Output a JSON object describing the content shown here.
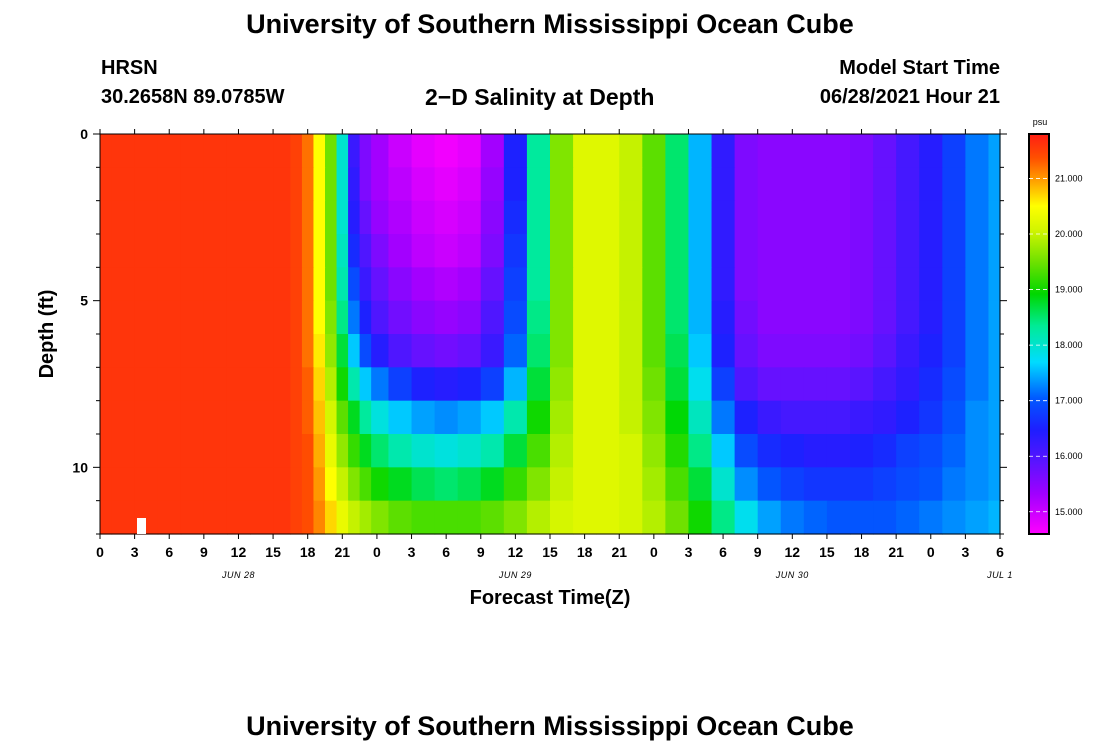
{
  "header": {
    "title_top": "University of Southern Mississippi Ocean Cube",
    "title_bottom": "University of Southern Mississippi Ocean Cube",
    "station": "HRSN",
    "coordinates": "30.2658N  89.0785W",
    "subtitle": "2−D Salinity at Depth",
    "model_start_label": "Model Start Time",
    "model_start_value": "06/28/2021 Hour 21"
  },
  "chart_data": {
    "type": "heatmap",
    "title": "2−D Salinity at Depth",
    "xlabel": "Forecast Time(Z)",
    "ylabel": "Depth (ft)",
    "x_tick_labels": [
      "0",
      "3",
      "6",
      "9",
      "12",
      "15",
      "18",
      "21",
      "0",
      "3",
      "6",
      "9",
      "12",
      "15",
      "18",
      "21",
      "0",
      "3",
      "6",
      "9",
      "12",
      "15",
      "18",
      "21",
      "0",
      "3",
      "6"
    ],
    "x_range_hours": [
      0,
      78
    ],
    "date_labels": [
      {
        "text": "JUN 28",
        "hour": 12
      },
      {
        "text": "JUN 29",
        "hour": 36
      },
      {
        "text": "JUN 30",
        "hour": 60
      },
      {
        "text": "JUL 1",
        "hour": 78
      }
    ],
    "y_ticks": [
      0,
      5,
      10
    ],
    "y_range_ft": [
      0,
      12
    ],
    "colorbar": {
      "unit": "psu",
      "ticks": [
        "15.000",
        "16.000",
        "17.000",
        "18.000",
        "19.000",
        "20.000",
        "21.000"
      ],
      "range": [
        14.6,
        21.8
      ]
    },
    "depth_levels_ft": [
      0.5,
      1.5,
      2.5,
      3.5,
      4.5,
      5.5,
      6.5,
      7.5,
      8.5,
      9.5,
      10.5,
      11.5
    ],
    "time_hours": [
      0,
      2,
      4,
      6,
      8,
      10,
      12,
      14,
      16,
      17,
      18,
      19,
      20,
      21,
      22,
      23,
      24,
      26,
      28,
      30,
      32,
      34,
      36,
      38,
      40,
      42,
      44,
      46,
      48,
      50,
      52,
      54,
      56,
      58,
      60,
      62,
      64,
      66,
      68,
      70,
      72,
      74,
      76,
      78
    ],
    "salinity_psu": [
      [
        21.6,
        21.6,
        21.6,
        21.6,
        21.6,
        21.6,
        21.6,
        21.6,
        21.6,
        21.5,
        21.2,
        20.5,
        19.5,
        18.0,
        16.2,
        15.6,
        15.3,
        15.0,
        14.8,
        14.7,
        14.8,
        15.3,
        16.5,
        18.3,
        19.6,
        20.2,
        20.2,
        20.0,
        19.4,
        18.5,
        17.5,
        16.3,
        15.6,
        15.5,
        15.5,
        15.5,
        15.5,
        15.6,
        15.8,
        16.1,
        16.4,
        16.8,
        17.2,
        17.4
      ],
      [
        21.6,
        21.6,
        21.6,
        21.6,
        21.6,
        21.6,
        21.6,
        21.6,
        21.6,
        21.5,
        21.2,
        20.5,
        19.5,
        18.0,
        16.3,
        15.6,
        15.3,
        15.1,
        14.9,
        14.8,
        14.9,
        15.4,
        16.5,
        18.3,
        19.6,
        20.2,
        20.2,
        20.0,
        19.4,
        18.5,
        17.5,
        16.3,
        15.6,
        15.5,
        15.5,
        15.5,
        15.5,
        15.6,
        15.8,
        16.1,
        16.4,
        16.8,
        17.2,
        17.4
      ],
      [
        21.6,
        21.6,
        21.6,
        21.6,
        21.6,
        21.6,
        21.6,
        21.6,
        21.6,
        21.5,
        21.2,
        20.5,
        19.5,
        18.0,
        16.4,
        15.8,
        15.4,
        15.2,
        15.0,
        14.9,
        15.0,
        15.5,
        16.6,
        18.3,
        19.6,
        20.2,
        20.2,
        20.0,
        19.4,
        18.5,
        17.5,
        16.3,
        15.6,
        15.5,
        15.5,
        15.5,
        15.5,
        15.6,
        15.8,
        16.1,
        16.4,
        16.8,
        17.2,
        17.4
      ],
      [
        21.6,
        21.6,
        21.6,
        21.6,
        21.6,
        21.6,
        21.6,
        21.6,
        21.6,
        21.5,
        21.2,
        20.5,
        19.5,
        18.1,
        16.6,
        16.0,
        15.6,
        15.3,
        15.1,
        15.0,
        15.1,
        15.6,
        16.7,
        18.3,
        19.6,
        20.2,
        20.2,
        20.0,
        19.4,
        18.5,
        17.5,
        16.3,
        15.6,
        15.5,
        15.5,
        15.5,
        15.5,
        15.6,
        15.8,
        16.1,
        16.4,
        16.8,
        17.2,
        17.4
      ],
      [
        21.6,
        21.6,
        21.6,
        21.6,
        21.6,
        21.6,
        21.6,
        21.6,
        21.6,
        21.5,
        21.2,
        20.5,
        19.5,
        18.2,
        16.9,
        16.2,
        15.8,
        15.5,
        15.3,
        15.2,
        15.3,
        15.8,
        16.8,
        18.3,
        19.6,
        20.2,
        20.2,
        20.0,
        19.4,
        18.5,
        17.5,
        16.3,
        15.6,
        15.5,
        15.5,
        15.5,
        15.5,
        15.6,
        15.8,
        16.1,
        16.4,
        16.8,
        17.2,
        17.4
      ],
      [
        21.6,
        21.6,
        21.6,
        21.6,
        21.6,
        21.6,
        21.6,
        21.6,
        21.6,
        21.5,
        21.2,
        20.5,
        19.6,
        18.4,
        17.2,
        16.5,
        16.0,
        15.7,
        15.5,
        15.4,
        15.5,
        16.0,
        16.9,
        18.4,
        19.6,
        20.2,
        20.2,
        20.0,
        19.4,
        18.5,
        17.5,
        16.4,
        15.7,
        15.5,
        15.5,
        15.5,
        15.5,
        15.6,
        15.8,
        16.1,
        16.4,
        16.8,
        17.2,
        17.4
      ],
      [
        21.6,
        21.6,
        21.6,
        21.6,
        21.6,
        21.6,
        21.6,
        21.6,
        21.6,
        21.5,
        21.2,
        20.6,
        19.7,
        18.7,
        17.6,
        16.9,
        16.4,
        16.0,
        15.8,
        15.7,
        15.8,
        16.2,
        17.1,
        18.5,
        19.6,
        20.2,
        20.2,
        20.0,
        19.4,
        18.6,
        17.6,
        16.5,
        15.8,
        15.6,
        15.6,
        15.6,
        15.6,
        15.7,
        15.9,
        16.2,
        16.5,
        16.8,
        17.2,
        17.4
      ],
      [
        21.6,
        21.6,
        21.6,
        21.6,
        21.6,
        21.6,
        21.6,
        21.6,
        21.6,
        21.5,
        21.3,
        20.7,
        19.9,
        19.0,
        18.2,
        17.6,
        17.2,
        16.8,
        16.5,
        16.4,
        16.5,
        16.8,
        17.5,
        18.7,
        19.7,
        20.2,
        20.2,
        20.0,
        19.5,
        18.7,
        17.8,
        16.8,
        16.0,
        15.8,
        15.8,
        15.8,
        15.8,
        15.9,
        16.1,
        16.3,
        16.6,
        16.9,
        17.2,
        17.4
      ],
      [
        21.6,
        21.6,
        21.6,
        21.6,
        21.6,
        21.6,
        21.6,
        21.6,
        21.6,
        21.5,
        21.3,
        20.8,
        20.1,
        19.4,
        18.8,
        18.3,
        17.9,
        17.6,
        17.4,
        17.3,
        17.4,
        17.6,
        18.2,
        19.0,
        19.8,
        20.2,
        20.2,
        20.0,
        19.6,
        18.9,
        18.1,
        17.2,
        16.5,
        16.2,
        16.1,
        16.1,
        16.1,
        16.2,
        16.3,
        16.5,
        16.7,
        17.0,
        17.3,
        17.4
      ],
      [
        21.6,
        21.6,
        21.6,
        21.6,
        21.6,
        21.6,
        21.6,
        21.6,
        21.6,
        21.5,
        21.4,
        20.9,
        20.3,
        19.7,
        19.2,
        18.8,
        18.5,
        18.2,
        18.0,
        17.9,
        18.0,
        18.2,
        18.7,
        19.3,
        19.9,
        20.2,
        20.2,
        20.1,
        19.7,
        19.1,
        18.4,
        17.6,
        16.9,
        16.6,
        16.5,
        16.4,
        16.4,
        16.5,
        16.6,
        16.8,
        16.9,
        17.1,
        17.3,
        17.4
      ],
      [
        21.6,
        21.6,
        21.6,
        21.6,
        21.6,
        21.6,
        21.6,
        21.6,
        21.6,
        21.5,
        21.4,
        21.0,
        20.5,
        20.0,
        19.6,
        19.3,
        19.0,
        18.8,
        18.6,
        18.5,
        18.6,
        18.8,
        19.2,
        19.6,
        20.0,
        20.2,
        20.2,
        20.1,
        19.8,
        19.3,
        18.7,
        18.0,
        17.3,
        17.0,
        16.8,
        16.7,
        16.7,
        16.7,
        16.8,
        16.9,
        17.0,
        17.2,
        17.3,
        17.4
      ],
      [
        21.6,
        21.6,
        21.6,
        21.6,
        21.6,
        21.6,
        21.6,
        21.6,
        21.6,
        21.5,
        21.4,
        21.1,
        20.7,
        20.3,
        20.0,
        19.8,
        19.6,
        19.4,
        19.3,
        19.3,
        19.3,
        19.4,
        19.6,
        19.9,
        20.1,
        20.2,
        20.2,
        20.1,
        19.9,
        19.5,
        19.0,
        18.4,
        17.8,
        17.4,
        17.2,
        17.1,
        17.0,
        17.0,
        17.0,
        17.1,
        17.2,
        17.3,
        17.4,
        17.5
      ]
    ]
  }
}
